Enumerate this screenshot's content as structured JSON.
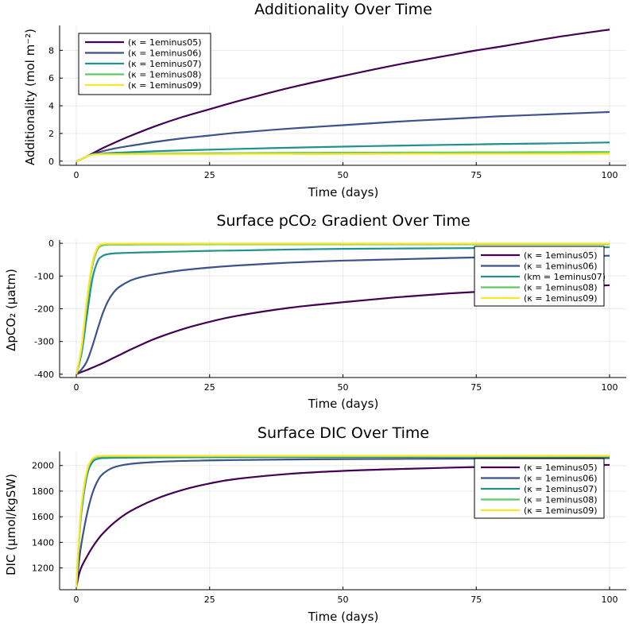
{
  "colors": {
    "series": [
      "#440154",
      "#3b528b",
      "#21918c",
      "#5ec962",
      "#fde725"
    ]
  },
  "chart_data": [
    {
      "type": "line",
      "title": "Additionality Over Time",
      "xlabel": "Time (days)",
      "ylabel": "Additionality (mol m⁻²)",
      "xlim": [
        0,
        100
      ],
      "ylim": [
        -0.3,
        9.8
      ],
      "xticks": [
        0,
        25,
        50,
        75,
        100
      ],
      "xtick_labels": [
        "0",
        "25",
        "50",
        "75",
        "100"
      ],
      "yticks": [
        0,
        2,
        4,
        6,
        8
      ],
      "ytick_labels": [
        "0",
        "2",
        "4",
        "6",
        "8"
      ],
      "grid": true,
      "legend_position": "top-left",
      "x": [
        0,
        1,
        2,
        3,
        4,
        5,
        7,
        10,
        15,
        20,
        25,
        30,
        40,
        50,
        60,
        70,
        75,
        80,
        90,
        100
      ],
      "series": [
        {
          "name": "(κ = 1eminus05)",
          "values": [
            0,
            0.15,
            0.35,
            0.55,
            0.75,
            0.95,
            1.3,
            1.8,
            2.55,
            3.2,
            3.75,
            4.3,
            5.3,
            6.15,
            6.95,
            7.65,
            8.0,
            8.3,
            8.95,
            9.5
          ]
        },
        {
          "name": "(κ = 1eminus06)",
          "values": [
            0,
            0.15,
            0.35,
            0.5,
            0.62,
            0.72,
            0.9,
            1.1,
            1.4,
            1.65,
            1.85,
            2.05,
            2.35,
            2.6,
            2.85,
            3.05,
            3.15,
            3.25,
            3.4,
            3.55
          ]
        },
        {
          "name": "(κ = 1eminus07)",
          "values": [
            0,
            0.15,
            0.35,
            0.48,
            0.52,
            0.55,
            0.6,
            0.65,
            0.72,
            0.78,
            0.83,
            0.88,
            0.97,
            1.05,
            1.12,
            1.18,
            1.21,
            1.24,
            1.29,
            1.35
          ]
        },
        {
          "name": "(κ = 1eminus08)",
          "values": [
            0,
            0.15,
            0.35,
            0.47,
            0.5,
            0.52,
            0.53,
            0.54,
            0.55,
            0.56,
            0.57,
            0.58,
            0.6,
            0.61,
            0.62,
            0.63,
            0.64,
            0.64,
            0.65,
            0.66
          ]
        },
        {
          "name": "(κ = 1eminus09)",
          "values": [
            0,
            0.15,
            0.35,
            0.46,
            0.49,
            0.5,
            0.5,
            0.5,
            0.51,
            0.51,
            0.51,
            0.52,
            0.52,
            0.52,
            0.53,
            0.53,
            0.53,
            0.53,
            0.53,
            0.54
          ]
        }
      ]
    },
    {
      "type": "line",
      "title": "Surface pCO₂ Gradient Over Time",
      "xlabel": "Time (days)",
      "ylabel": "ΔpCO₂ (μatm)",
      "xlim": [
        0,
        100
      ],
      "ylim": [
        -410,
        10
      ],
      "xticks": [
        0,
        25,
        50,
        75,
        100
      ],
      "xtick_labels": [
        "0",
        "25",
        "50",
        "75",
        "100"
      ],
      "yticks": [
        -400,
        -300,
        -200,
        -100,
        0
      ],
      "ytick_labels": [
        "-400",
        "-300",
        "-200",
        "-100",
        "0"
      ],
      "grid": true,
      "legend_position": "top-right",
      "x": [
        0,
        1,
        2,
        3,
        4,
        5,
        6,
        7,
        8,
        10,
        12,
        15,
        20,
        25,
        30,
        40,
        50,
        60,
        70,
        80,
        90,
        100
      ],
      "series": [
        {
          "name": "(κ = 1eminus05)",
          "values": [
            -400,
            -393,
            -387,
            -380,
            -373,
            -366,
            -358,
            -350,
            -342,
            -326,
            -311,
            -290,
            -262,
            -240,
            -222,
            -197,
            -180,
            -165,
            -153,
            -144,
            -135,
            -128
          ]
        },
        {
          "name": "(κ = 1eminus06)",
          "values": [
            -400,
            -385,
            -360,
            -315,
            -262,
            -212,
            -175,
            -150,
            -134,
            -115,
            -104,
            -94,
            -82,
            -74,
            -68,
            -59,
            -53,
            -49,
            -45,
            -42,
            -40,
            -38
          ]
        },
        {
          "name": "(km = 1eminus07)",
          "values": [
            -400,
            -335,
            -220,
            -110,
            -55,
            -38,
            -33,
            -31,
            -30,
            -29,
            -28,
            -27,
            -25,
            -23,
            -22,
            -19,
            -17,
            -16,
            -15,
            -14,
            -13,
            -12
          ]
        },
        {
          "name": "(κ = 1eminus08)",
          "values": [
            -400,
            -320,
            -180,
            -70,
            -18,
            -6,
            -4,
            -4,
            -4,
            -4,
            -3.5,
            -3.5,
            -3.5,
            -3,
            -3,
            -3,
            -3,
            -3,
            -3,
            -3,
            -3,
            -3
          ]
        },
        {
          "name": "(κ = 1eminus09)",
          "values": [
            -400,
            -315,
            -170,
            -60,
            -12,
            -2,
            -1,
            -1,
            -1,
            -1,
            -1,
            -1,
            -1,
            -1,
            -1,
            -1,
            -1,
            -1,
            -1,
            -1,
            -1,
            -1
          ]
        }
      ]
    },
    {
      "type": "line",
      "title": "Surface DIC Over Time",
      "xlabel": "Time (days)",
      "ylabel": "DIC (μmol/kgSW)",
      "xlim": [
        0,
        100
      ],
      "ylim": [
        1030,
        2110
      ],
      "xticks": [
        0,
        25,
        50,
        75,
        100
      ],
      "xtick_labels": [
        "0",
        "25",
        "50",
        "75",
        "100"
      ],
      "yticks": [
        1200,
        1400,
        1600,
        1800,
        2000
      ],
      "ytick_labels": [
        "1200",
        "1400",
        "1600",
        "1800",
        "2000"
      ],
      "grid": true,
      "legend_position": "top-right",
      "x": [
        0,
        0.5,
        1,
        2,
        3,
        4,
        5,
        7,
        10,
        15,
        20,
        25,
        30,
        40,
        50,
        60,
        75,
        90,
        100
      ],
      "series": [
        {
          "name": "(κ = 1eminus05)",
          "values": [
            1050,
            1150,
            1210,
            1290,
            1360,
            1420,
            1470,
            1550,
            1640,
            1740,
            1810,
            1860,
            1895,
            1935,
            1958,
            1972,
            1988,
            1998,
            2005
          ]
        },
        {
          "name": "(κ = 1eminus06)",
          "values": [
            1050,
            1250,
            1400,
            1620,
            1780,
            1880,
            1935,
            1985,
            2012,
            2028,
            2036,
            2040,
            2043,
            2047,
            2050,
            2052,
            2054,
            2056,
            2058
          ]
        },
        {
          "name": "(κ = 1eminus07)",
          "values": [
            1050,
            1400,
            1650,
            1920,
            2025,
            2052,
            2058,
            2060,
            2062,
            2063,
            2064,
            2064,
            2065,
            2066,
            2066,
            2067,
            2068,
            2068,
            2069
          ]
        },
        {
          "name": "(κ = 1eminus08)",
          "values": [
            1050,
            1420,
            1680,
            1950,
            2045,
            2066,
            2070,
            2071,
            2072,
            2072,
            2072,
            2072,
            2073,
            2073,
            2073,
            2073,
            2073,
            2073,
            2073
          ]
        },
        {
          "name": "(κ = 1eminus09)",
          "values": [
            1050,
            1430,
            1700,
            1960,
            2052,
            2072,
            2075,
            2076,
            2076,
            2076,
            2076,
            2076,
            2076,
            2076,
            2076,
            2076,
            2076,
            2076,
            2076
          ]
        }
      ]
    }
  ]
}
